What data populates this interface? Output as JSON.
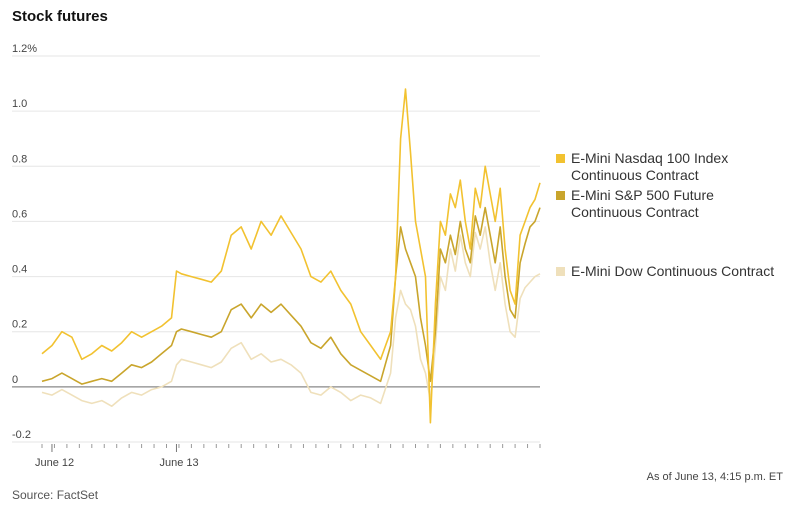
{
  "chart_data": {
    "type": "line",
    "title": "Stock futures",
    "xlabel": "",
    "ylabel": "",
    "y_unit": "%",
    "ylim": [
      -0.2,
      1.2
    ],
    "yticks": [
      -0.2,
      0,
      0.2,
      0.4,
      0.6,
      0.8,
      1.0,
      1.2
    ],
    "ytick_labels": [
      "-0.2",
      "0",
      "0.2",
      "0.4",
      "0.6",
      "0.8",
      "1.0",
      "1.2%"
    ],
    "xlim": [
      0,
      100
    ],
    "xtick_labels": [
      {
        "label": "June 12",
        "x": 2
      },
      {
        "label": "June 13",
        "x": 27
      }
    ],
    "grid": true,
    "legend_position": "right",
    "footnote": "As of June 13, 4:15 p.m. ET",
    "source": "Source: FactSet",
    "series": [
      {
        "name": "E-Mini Nasdaq 100 Index Continuous Contract",
        "color": "#f2c230",
        "x": [
          0,
          2,
          4,
          6,
          8,
          10,
          12,
          14,
          16,
          18,
          20,
          22,
          24,
          26,
          27,
          28,
          30,
          32,
          34,
          36,
          38,
          40,
          42,
          44,
          46,
          48,
          50,
          52,
          54,
          56,
          58,
          60,
          62,
          64,
          66,
          68,
          70,
          71,
          72,
          73,
          74,
          75,
          76,
          77,
          78,
          79,
          80,
          81,
          82,
          83,
          84,
          85,
          86,
          87,
          88,
          89,
          90,
          91,
          92,
          93,
          94,
          95,
          96,
          97,
          98,
          99,
          100
        ],
        "values": [
          0.12,
          0.15,
          0.2,
          0.18,
          0.1,
          0.12,
          0.15,
          0.13,
          0.16,
          0.2,
          0.18,
          0.2,
          0.22,
          0.25,
          0.42,
          0.41,
          0.4,
          0.39,
          0.38,
          0.42,
          0.55,
          0.58,
          0.5,
          0.6,
          0.55,
          0.62,
          0.56,
          0.5,
          0.4,
          0.38,
          0.42,
          0.35,
          0.3,
          0.2,
          0.15,
          0.1,
          0.2,
          0.4,
          0.9,
          1.08,
          0.85,
          0.6,
          0.5,
          0.4,
          -0.13,
          0.3,
          0.6,
          0.55,
          0.7,
          0.65,
          0.75,
          0.6,
          0.5,
          0.72,
          0.65,
          0.8,
          0.7,
          0.6,
          0.72,
          0.5,
          0.35,
          0.3,
          0.55,
          0.6,
          0.65,
          0.68,
          0.74
        ]
      },
      {
        "name": "E-Mini S&P 500 Future Continuous Contract",
        "color": "#c9a52c",
        "x": [
          0,
          2,
          4,
          6,
          8,
          10,
          12,
          14,
          16,
          18,
          20,
          22,
          24,
          26,
          27,
          28,
          30,
          32,
          34,
          36,
          38,
          40,
          42,
          44,
          46,
          48,
          50,
          52,
          54,
          56,
          58,
          60,
          62,
          64,
          66,
          68,
          70,
          71,
          72,
          73,
          74,
          75,
          76,
          77,
          78,
          79,
          80,
          81,
          82,
          83,
          84,
          85,
          86,
          87,
          88,
          89,
          90,
          91,
          92,
          93,
          94,
          95,
          96,
          97,
          98,
          99,
          100
        ],
        "values": [
          0.02,
          0.03,
          0.05,
          0.03,
          0.01,
          0.02,
          0.03,
          0.02,
          0.05,
          0.08,
          0.07,
          0.09,
          0.12,
          0.15,
          0.2,
          0.21,
          0.2,
          0.19,
          0.18,
          0.2,
          0.28,
          0.3,
          0.25,
          0.3,
          0.27,
          0.3,
          0.26,
          0.22,
          0.16,
          0.14,
          0.18,
          0.12,
          0.08,
          0.06,
          0.04,
          0.02,
          0.15,
          0.4,
          0.58,
          0.5,
          0.45,
          0.4,
          0.25,
          0.15,
          0.02,
          0.2,
          0.5,
          0.45,
          0.55,
          0.48,
          0.6,
          0.5,
          0.45,
          0.62,
          0.55,
          0.65,
          0.55,
          0.45,
          0.58,
          0.4,
          0.28,
          0.25,
          0.45,
          0.52,
          0.58,
          0.6,
          0.65
        ]
      },
      {
        "name": "E-Mini Dow Continuous Contract",
        "color": "#efe0bb",
        "x": [
          0,
          2,
          4,
          6,
          8,
          10,
          12,
          14,
          16,
          18,
          20,
          22,
          24,
          26,
          27,
          28,
          30,
          32,
          34,
          36,
          38,
          40,
          42,
          44,
          46,
          48,
          50,
          52,
          54,
          56,
          58,
          60,
          62,
          64,
          66,
          68,
          70,
          71,
          72,
          73,
          74,
          75,
          76,
          77,
          78,
          79,
          80,
          81,
          82,
          83,
          84,
          85,
          86,
          87,
          88,
          89,
          90,
          91,
          92,
          93,
          94,
          95,
          96,
          97,
          98,
          99,
          100
        ],
        "values": [
          -0.02,
          -0.03,
          -0.01,
          -0.03,
          -0.05,
          -0.06,
          -0.05,
          -0.07,
          -0.04,
          -0.02,
          -0.03,
          -0.01,
          0.0,
          0.02,
          0.08,
          0.1,
          0.09,
          0.08,
          0.07,
          0.09,
          0.14,
          0.16,
          0.1,
          0.12,
          0.09,
          0.1,
          0.08,
          0.05,
          -0.02,
          -0.03,
          0.0,
          -0.02,
          -0.05,
          -0.03,
          -0.04,
          -0.06,
          0.05,
          0.25,
          0.35,
          0.3,
          0.28,
          0.22,
          0.1,
          0.05,
          -0.05,
          0.15,
          0.4,
          0.35,
          0.5,
          0.42,
          0.55,
          0.45,
          0.4,
          0.56,
          0.5,
          0.58,
          0.45,
          0.35,
          0.45,
          0.3,
          0.2,
          0.18,
          0.32,
          0.36,
          0.38,
          0.4,
          0.41
        ]
      }
    ]
  }
}
